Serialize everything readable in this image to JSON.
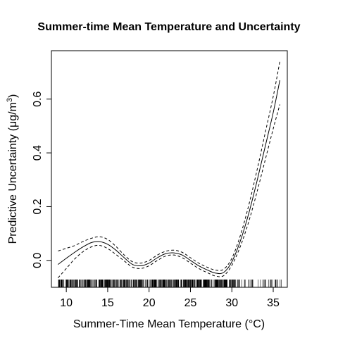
{
  "chart_data": {
    "type": "line",
    "title": "Summer-time Mean Temperature and Uncertainty",
    "xlabel": "Summer-Time Mean Temperature (°C)",
    "ylabel": "Predictive Uncertainty (μg/m³)",
    "ylabel_parts": {
      "main": "Predictive Uncertainty (μg/m",
      "sup": "3",
      "tail": ")"
    },
    "xlim": [
      8.2,
      36.7
    ],
    "ylim": [
      -0.1,
      0.78
    ],
    "xticks": [
      10,
      15,
      20,
      25,
      30,
      35
    ],
    "yticks": [
      0.0,
      0.2,
      0.4,
      0.6
    ],
    "ytick_labels": [
      "0.0",
      "0.2",
      "0.4",
      "0.6"
    ],
    "grid": false,
    "legend": "none",
    "rug": {
      "range": [
        9,
        36
      ],
      "dense_range": [
        10,
        31
      ]
    },
    "series": [
      {
        "style": "solid",
        "x": [
          9,
          10,
          11,
          12,
          13,
          14,
          15,
          16,
          17,
          18,
          19,
          20,
          21,
          22,
          23,
          24,
          25,
          26,
          27,
          28,
          29,
          30,
          31,
          32,
          33,
          34,
          35,
          35.8
        ],
        "values": [
          -0.015,
          0.008,
          0.03,
          0.05,
          0.066,
          0.07,
          0.06,
          0.038,
          0.01,
          -0.015,
          -0.02,
          -0.01,
          0.01,
          0.025,
          0.028,
          0.02,
          0.0,
          -0.02,
          -0.035,
          -0.047,
          -0.045,
          -0.005,
          0.07,
          0.17,
          0.29,
          0.42,
          0.55,
          0.67
        ]
      },
      {
        "style": "dashed",
        "x": [
          9,
          10,
          11,
          12,
          13,
          14,
          15,
          16,
          17,
          18,
          19,
          20,
          21,
          22,
          23,
          24,
          25,
          26,
          27,
          28,
          29,
          30,
          31,
          32,
          33,
          34,
          35,
          35.8
        ],
        "values": [
          0.035,
          0.045,
          0.055,
          0.07,
          0.082,
          0.088,
          0.078,
          0.052,
          0.02,
          -0.005,
          -0.01,
          0.0,
          0.02,
          0.034,
          0.038,
          0.03,
          0.01,
          -0.01,
          -0.025,
          -0.036,
          -0.033,
          0.008,
          0.09,
          0.2,
          0.33,
          0.47,
          0.61,
          0.74
        ]
      },
      {
        "style": "dashed",
        "x": [
          9,
          10,
          11,
          12,
          13,
          14,
          15,
          16,
          17,
          18,
          19,
          20,
          21,
          22,
          23,
          24,
          25,
          26,
          27,
          28,
          29,
          30,
          31,
          32,
          33,
          34,
          35,
          35.8
        ],
        "values": [
          -0.065,
          -0.03,
          0.005,
          0.032,
          0.05,
          0.056,
          0.044,
          0.022,
          -0.002,
          -0.025,
          -0.03,
          -0.02,
          0.0,
          0.016,
          0.02,
          0.01,
          -0.01,
          -0.03,
          -0.045,
          -0.058,
          -0.057,
          -0.018,
          0.05,
          0.14,
          0.25,
          0.37,
          0.49,
          0.58
        ]
      }
    ]
  }
}
